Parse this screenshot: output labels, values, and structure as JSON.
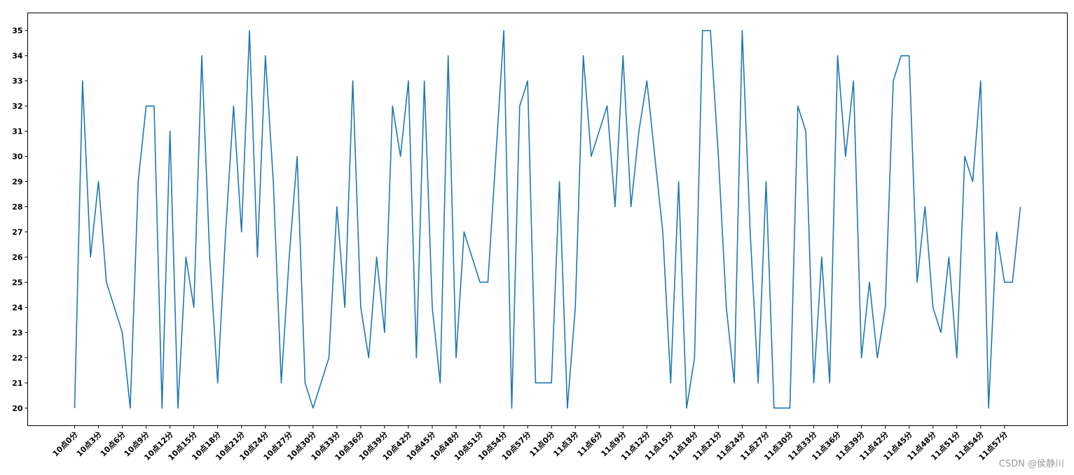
{
  "chart_data": {
    "type": "line",
    "title": "",
    "xlabel": "",
    "ylabel": "",
    "ylim": [
      19.3,
      35.7
    ],
    "yticks": [
      20,
      21,
      22,
      23,
      24,
      25,
      26,
      27,
      28,
      29,
      30,
      31,
      32,
      33,
      34,
      35
    ],
    "x_tick_labels": [
      "10点0分",
      "10点3分",
      "10点6分",
      "10点9分",
      "10点12分",
      "10点15分",
      "10点18分",
      "10点21分",
      "10点24分",
      "10点27分",
      "10点30分",
      "10点33分",
      "10点36分",
      "10点39分",
      "10点42分",
      "10点45分",
      "10点48分",
      "10点51分",
      "10点54分",
      "10点57分",
      "11点0分",
      "11点3分",
      "11点6分",
      "11点9分",
      "11点12分",
      "11点15分",
      "11点18分",
      "11点21分",
      "11点24分",
      "11点27分",
      "11点30分",
      "11点33分",
      "11点36分",
      "11点39分",
      "11点42分",
      "11点45分",
      "11点48分",
      "11点51分",
      "11点54分",
      "11点57分"
    ],
    "x_tick_every": 3,
    "grid": false,
    "series": [
      {
        "color": "#1f77b4",
        "values": [
          20,
          33,
          26,
          29,
          25,
          24,
          23,
          20,
          29,
          32,
          32,
          20,
          31,
          20,
          26,
          24,
          34,
          26,
          21,
          27,
          32,
          27,
          35,
          26,
          34,
          29,
          21,
          26,
          30,
          21,
          20,
          21,
          22,
          28,
          24,
          33,
          24,
          22,
          26,
          23,
          32,
          30,
          33,
          22,
          33,
          24,
          21,
          34,
          22,
          27,
          26,
          25,
          25,
          30,
          35,
          20,
          32,
          33,
          21,
          21,
          21,
          29,
          20,
          24,
          34,
          30,
          31,
          32,
          28,
          34,
          28,
          31,
          33,
          30,
          27,
          21,
          29,
          20,
          22,
          35,
          35,
          30,
          24,
          21,
          35,
          27,
          21,
          29,
          20,
          20,
          20,
          32,
          31,
          21,
          26,
          21,
          34,
          30,
          33,
          22,
          25,
          22,
          24,
          33,
          34,
          34,
          25,
          28,
          24,
          23,
          26,
          22,
          30,
          29,
          33,
          20,
          27,
          25,
          25,
          28
        ]
      }
    ]
  },
  "watermark": "CSDN @侯静川"
}
